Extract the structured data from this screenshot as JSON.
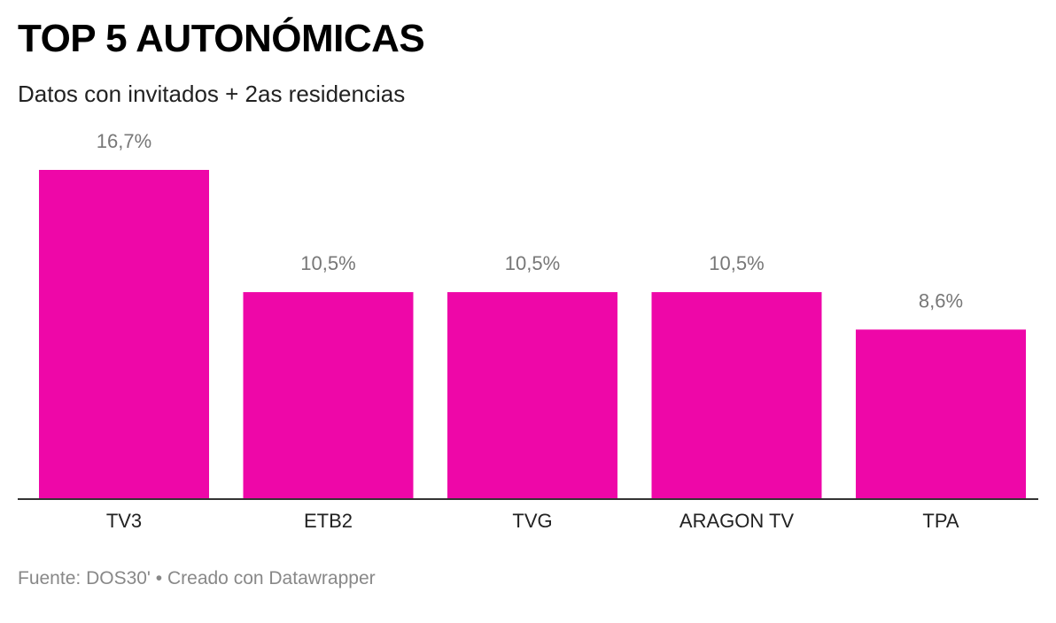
{
  "title": "TOP 5 AUTONÓMICAS",
  "subtitle": "Datos con invitados + 2as residencias",
  "footer": {
    "source_label": "Fuente:",
    "source": "DOS30'",
    "separator": "•",
    "credit": "Creado con Datawrapper"
  },
  "colors": {
    "bar": "#ee07a8",
    "value_label": "#777777",
    "category_label": "#222222",
    "axis": "#333333"
  },
  "chart_data": {
    "type": "bar",
    "title": "TOP 5 AUTONÓMICAS",
    "subtitle": "Datos con invitados + 2as residencias",
    "categories": [
      "TV3",
      "ETB2",
      "TVG",
      "ARAGON TV",
      "TPA"
    ],
    "values": [
      16.7,
      10.5,
      10.5,
      10.5,
      8.6
    ],
    "value_labels": [
      "16,7%",
      "10,5%",
      "10,5%",
      "10,5%",
      "8,6%"
    ],
    "unit": "%",
    "ylim": [
      0,
      16.7
    ],
    "grid": false,
    "legend": "none"
  }
}
